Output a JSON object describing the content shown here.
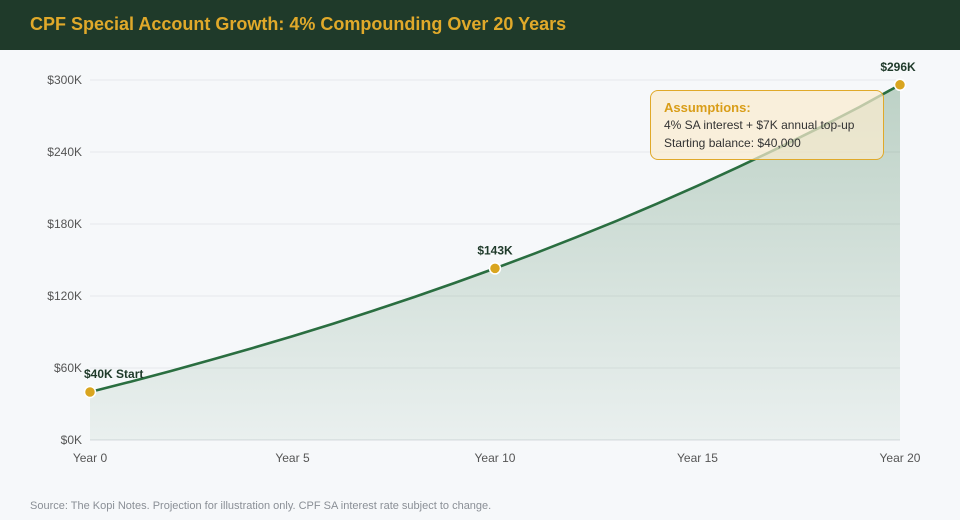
{
  "header": {
    "title": "CPF Special Account Growth: 4% Compounding Over 20 Years"
  },
  "assumptions": {
    "title": "Assumptions:",
    "lines": [
      "4% SA interest + $7K annual top-up",
      "Starting balance: $40,000"
    ]
  },
  "source": "Source: The Kopi Notes. Projection for illustration only. CPF SA interest rate subject to change.",
  "colors": {
    "header_bg": "#1f3a2a",
    "accent": "#e0a92a",
    "line": "#2a6e40",
    "area": "#2a6e40",
    "marker": "#d9a51f"
  },
  "chart_data": {
    "type": "area",
    "x_ticks": [
      "Year 0",
      "Year 5",
      "Year 10",
      "Year 15",
      "Year 20"
    ],
    "y_ticks": [
      "$0K",
      "$60K",
      "$120K",
      "$180K",
      "$240K",
      "$300K"
    ],
    "x": [
      0,
      1,
      2,
      3,
      4,
      5,
      6,
      7,
      8,
      9,
      10,
      11,
      12,
      13,
      14,
      15,
      16,
      17,
      18,
      19,
      20
    ],
    "y": [
      40,
      48.6,
      57.5,
      66.8,
      76.5,
      86.5,
      96.9,
      107.8,
      119.1,
      130.8,
      143,
      155.7,
      168.9,
      182.6,
      196.9,
      211.8,
      227.3,
      243.4,
      260.1,
      277.5,
      296
    ],
    "xlim": [
      0,
      20
    ],
    "ylim": [
      0,
      300
    ],
    "grid": true,
    "annotations": [
      {
        "x": 0,
        "y": 40,
        "label": "$40K Start"
      },
      {
        "x": 10,
        "y": 143,
        "label": "$143K"
      },
      {
        "x": 20,
        "y": 296,
        "label": "$296K"
      }
    ]
  }
}
